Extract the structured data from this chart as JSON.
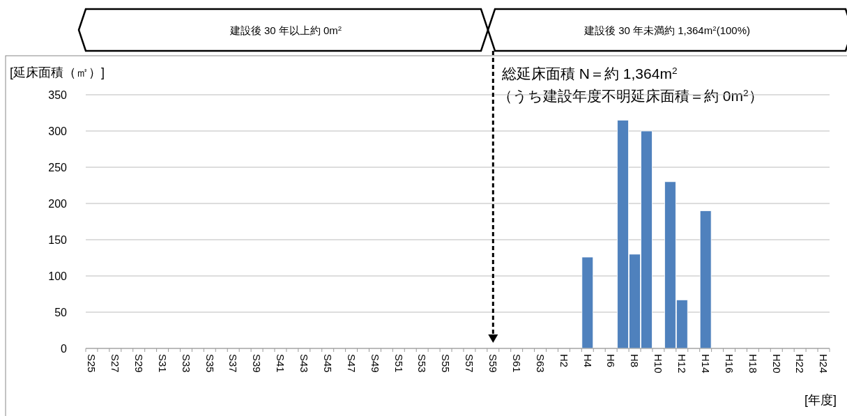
{
  "chart_data": {
    "type": "bar",
    "categories": [
      "S25",
      null,
      "S27",
      null,
      "S29",
      null,
      "S31",
      null,
      "S33",
      null,
      "S35",
      null,
      "S37",
      null,
      "S39",
      null,
      "S41",
      null,
      "S43",
      null,
      "S45",
      null,
      "S47",
      null,
      "S49",
      null,
      "S51",
      null,
      "S53",
      null,
      "S55",
      null,
      "S57",
      null,
      "S59",
      null,
      "S61",
      null,
      "S63",
      null,
      "H2",
      null,
      "H4",
      null,
      "H6",
      null,
      "H8",
      null,
      "H10",
      null,
      "H12",
      null,
      "H14",
      null,
      "H16",
      null,
      "H18",
      null,
      "H20",
      null,
      "H22",
      null,
      "H24"
    ],
    "values": [
      0,
      0,
      0,
      0,
      0,
      0,
      0,
      0,
      0,
      0,
      0,
      0,
      0,
      0,
      0,
      0,
      0,
      0,
      0,
      0,
      0,
      0,
      0,
      0,
      0,
      0,
      0,
      0,
      0,
      0,
      0,
      0,
      0,
      0,
      0,
      0,
      0,
      0,
      0,
      0,
      0,
      0,
      126,
      0,
      0,
      315,
      130,
      300,
      0,
      230,
      67,
      0,
      190,
      0,
      0,
      0,
      0,
      0,
      0,
      0,
      0,
      0,
      0
    ],
    "color": "#4f81bd",
    "ylim": [
      0,
      350
    ],
    "yticks": [
      0,
      50,
      100,
      150,
      200,
      250,
      300,
      350
    ],
    "grid": "y",
    "ylabel": "[延床面積（㎡）]",
    "xlabel": "[年度]",
    "ref_lines": [
      {
        "axis": "x",
        "value": "S59",
        "line_style": "dashed",
        "color": "#000000"
      }
    ],
    "annotations": [
      "建設後 30 年以上約 0m$^{2}$",
      "建設後 30 年未満約 1,364m$^{2}$(100%)",
      "総延床面積 N＝約 1,364m$^{2}$",
      "（うち建設年度不明延床面積＝約 0m$^{2}$）"
    ]
  }
}
